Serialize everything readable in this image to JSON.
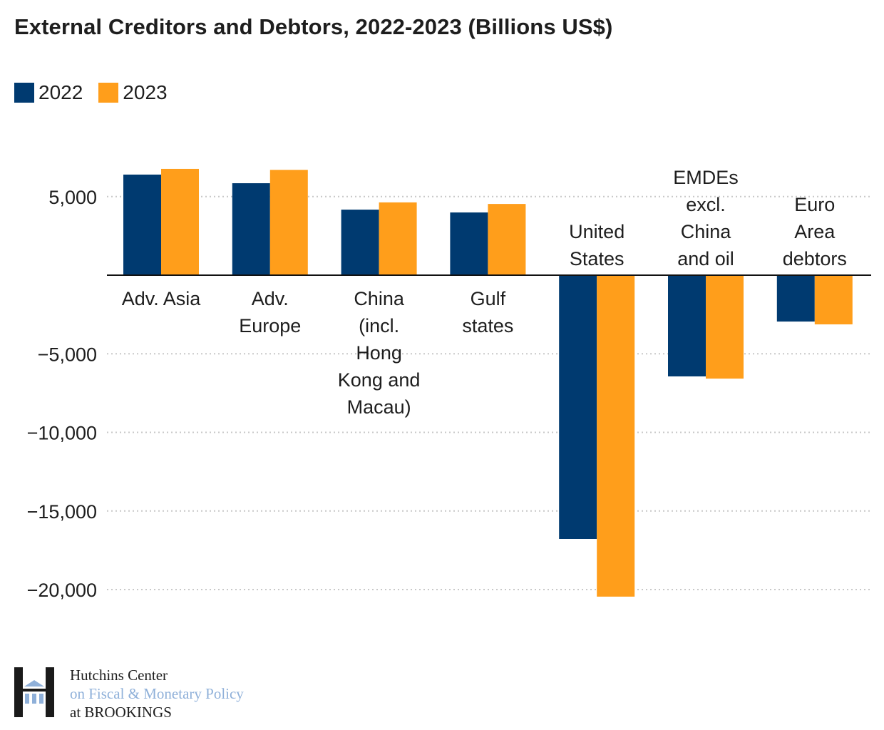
{
  "chart_data": {
    "type": "bar",
    "title": "External Creditors and Debtors, 2022-2023 (Billions US$)",
    "xlabel": "",
    "ylabel": "",
    "ylim": [
      -21500,
      9000
    ],
    "yticks": [
      5000,
      -5000,
      -10000,
      -15000,
      -20000
    ],
    "ytick_labels": [
      "5,000",
      "−5,000",
      "−10,000",
      "−15,000",
      "−20,000"
    ],
    "grid": true,
    "legend_position": "top-left",
    "categories": [
      "Adv. Asia",
      "Adv. Europe",
      "China (incl. Hong Kong and Macau)",
      "Gulf states",
      "United States",
      "EMDEs excl. China and oil",
      "Euro Area debtors"
    ],
    "category_label_lines": [
      [
        "Adv. Asia"
      ],
      [
        "Adv.",
        "Europe"
      ],
      [
        "China",
        "(incl.",
        "Hong",
        "Kong and",
        "Macau)"
      ],
      [
        "Gulf",
        "states"
      ],
      [
        "United",
        "States"
      ],
      [
        "EMDEs",
        "excl.",
        "China",
        "and oil"
      ],
      [
        "Euro",
        "Area",
        "debtors"
      ]
    ],
    "series": [
      {
        "name": "2022",
        "color": "#003A70",
        "values": [
          6400,
          5850,
          4170,
          3990,
          -16780,
          -6440,
          -2950
        ]
      },
      {
        "name": "2023",
        "color": "#FF9E1B",
        "values": [
          6760,
          6700,
          4630,
          4530,
          -20450,
          -6580,
          -3130
        ]
      }
    ]
  },
  "legend": {
    "items": [
      {
        "label": "2022",
        "color": "#003A70"
      },
      {
        "label": "2023",
        "color": "#FF9E1B"
      }
    ]
  },
  "logo": {
    "line1": "Hutchins Center",
    "line2": "on Fiscal & Monetary Policy",
    "line3": "at BROOKINGS",
    "icon": "hutchins-h-building-icon"
  }
}
